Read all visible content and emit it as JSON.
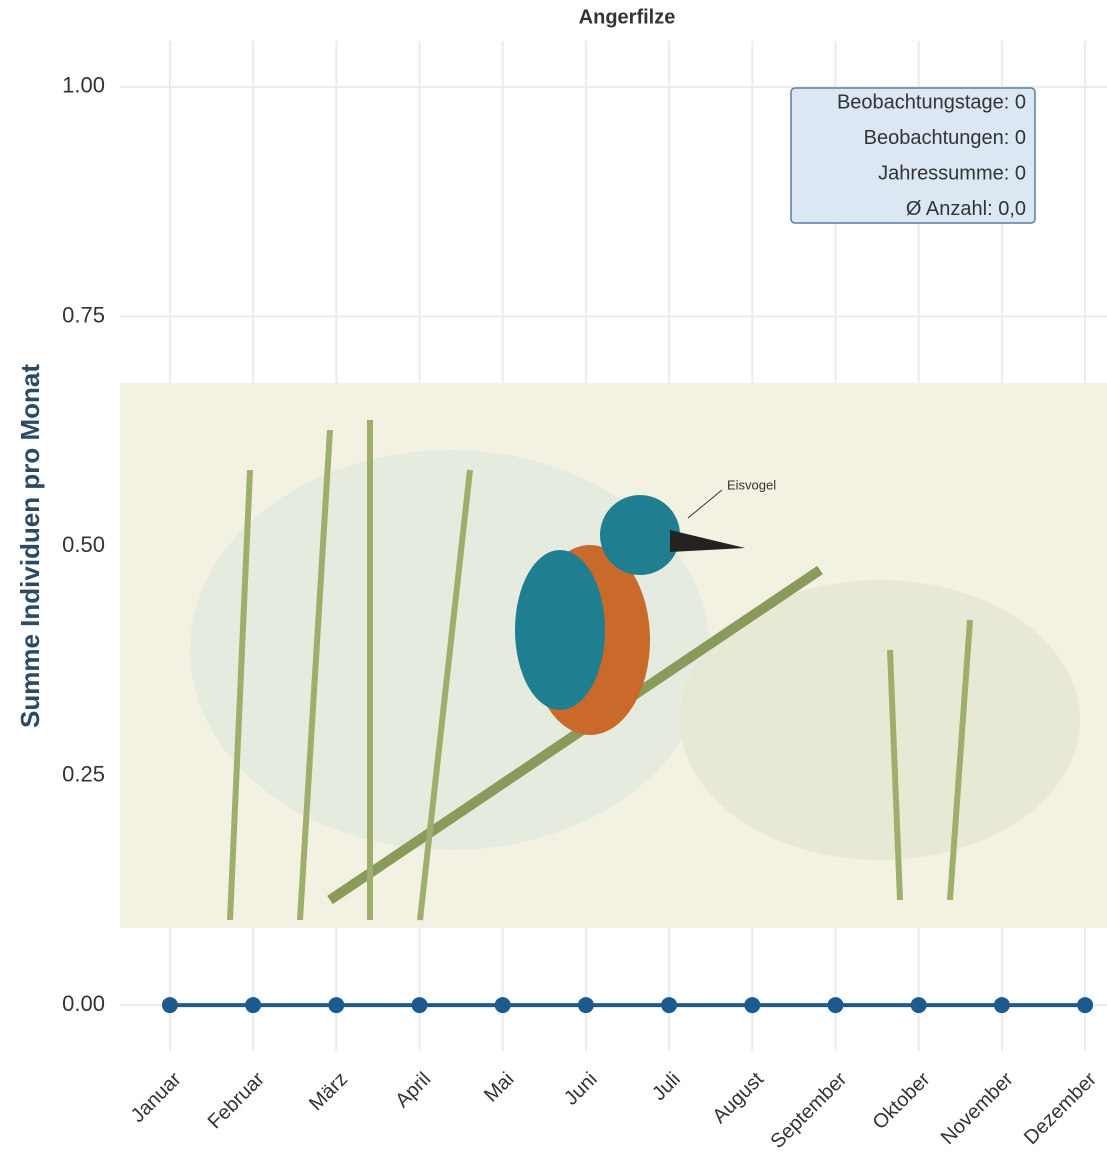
{
  "chart_data": {
    "type": "line",
    "title": "Angerfilze",
    "y_label": "Summe Individuen pro Monat",
    "categories": [
      "Januar",
      "Februar",
      "März",
      "April",
      "Mai",
      "Juni",
      "Juli",
      "August",
      "September",
      "Oktober",
      "November",
      "Dezember"
    ],
    "series": [
      {
        "name": "Eisvogel",
        "color": "#1d5a8e",
        "values": [
          0,
          0,
          0,
          0,
          0,
          0,
          0,
          0,
          0,
          0,
          0,
          0
        ]
      }
    ],
    "ylim": [
      -0.05,
      1.05
    ],
    "yticks": [
      {
        "value": 0,
        "label": "0.00"
      },
      {
        "value": 0.25,
        "label": "0.25"
      },
      {
        "value": 0.5,
        "label": "0.50"
      },
      {
        "value": 0.75,
        "label": "0.75"
      },
      {
        "value": 1,
        "label": "1.00"
      }
    ],
    "grid": true,
    "stats": [
      "Beobachtungstage: 0",
      "Beobachtungen: 0",
      "Jahressumme: 0",
      "Ø Anzahl: 0,0"
    ]
  }
}
